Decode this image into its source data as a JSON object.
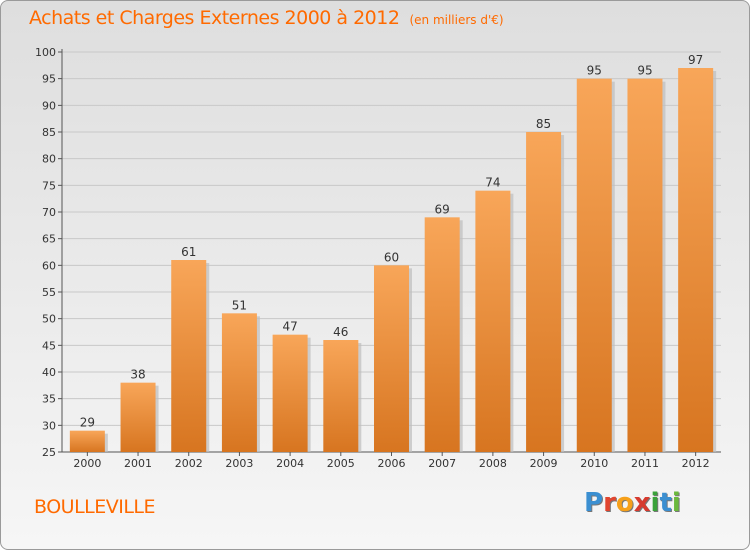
{
  "header": {
    "title": "Achats et Charges Externes 2000 à 2012",
    "unit_note": "(en milliers d'€)"
  },
  "footer": {
    "commune": "BOULLEVILLE",
    "logo_letters": [
      {
        "ch": "P",
        "color": "#3b8fd1"
      },
      {
        "ch": "r",
        "color": "#e1452f"
      },
      {
        "ch": "o",
        "color": "#f6a01a"
      },
      {
        "ch": "x",
        "color": "#d63b2f"
      },
      {
        "ch": "i",
        "color": "#3aa23a"
      },
      {
        "ch": "t",
        "color": "#3b8fd1"
      },
      {
        "ch": "i",
        "color": "#6bb93c"
      }
    ]
  },
  "colors": {
    "accent": "#ff6a00",
    "bar_top": "#f8a659",
    "bar_bottom": "#d77520",
    "grid": "#c8c8c8"
  },
  "chart_data": {
    "type": "bar",
    "categories": [
      "2000",
      "2001",
      "2002",
      "2003",
      "2004",
      "2005",
      "2006",
      "2007",
      "2008",
      "2009",
      "2010",
      "2011",
      "2012"
    ],
    "values": [
      29,
      38,
      61,
      51,
      47,
      46,
      60,
      69,
      74,
      85,
      95,
      95,
      97
    ],
    "title": "Achats et Charges Externes 2000 à 2012",
    "subtitle": "(en milliers d'€)",
    "xlabel": "",
    "ylabel": "",
    "ylim": [
      25,
      100
    ],
    "yticks": [
      25,
      30,
      35,
      40,
      45,
      50,
      55,
      60,
      65,
      70,
      75,
      80,
      85,
      90,
      95,
      100
    ],
    "grid": true,
    "legend": "none"
  }
}
